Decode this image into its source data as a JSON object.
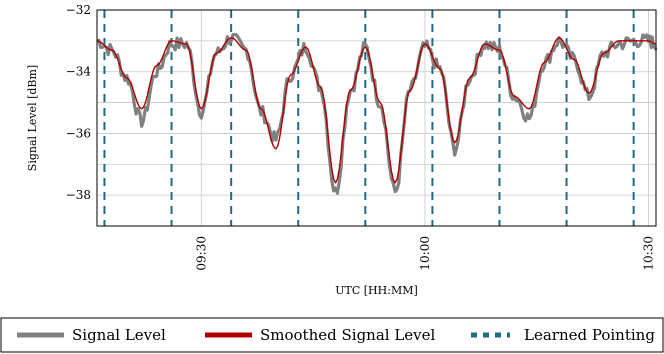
{
  "chart_data": {
    "type": "line",
    "title": "",
    "xlabel": "UTC [HH:MM]",
    "ylabel": "Signal Level [dBm]",
    "ylim": [
      -39,
      -32
    ],
    "y_ticks": [
      -32,
      -34,
      -36,
      -38
    ],
    "y_tick_labels": [
      "−32",
      "−34",
      "−36",
      "−38"
    ],
    "xlim": [
      "09:16",
      "10:31"
    ],
    "x_ticks": [
      "09:30",
      "10:00",
      "10:30"
    ],
    "grid": true,
    "legend_position": "bottom",
    "series": [
      {
        "name": "Signal Level",
        "color": "#808080",
        "style": "noisy band",
        "x": [
          "09:16",
          "09:18",
          "09:20",
          "09:22",
          "09:24",
          "09:26",
          "09:28",
          "09:30",
          "09:32",
          "09:34",
          "09:36",
          "09:38",
          "09:40",
          "09:42",
          "09:44",
          "09:46",
          "09:48",
          "09:50",
          "09:52",
          "09:54",
          "09:56",
          "09:58",
          "10:00",
          "10:02",
          "10:04",
          "10:06",
          "10:08",
          "10:10",
          "10:12",
          "10:14",
          "10:16",
          "10:18",
          "10:20",
          "10:22",
          "10:24",
          "10:26",
          "10:28",
          "10:30",
          "10:31"
        ],
        "y": [
          -33.0,
          -33.3,
          -34.2,
          -35.6,
          -34.0,
          -33.1,
          -33.1,
          -35.3,
          -33.4,
          -32.9,
          -33.3,
          -35.3,
          -36.2,
          -34.1,
          -33.2,
          -34.5,
          -37.9,
          -34.6,
          -33.2,
          -35.0,
          -37.9,
          -34.6,
          -33.2,
          -33.9,
          -36.5,
          -34.2,
          -33.1,
          -33.3,
          -34.8,
          -35.5,
          -33.7,
          -33.0,
          -33.6,
          -34.8,
          -33.4,
          -33.1,
          -33.0,
          -33.0,
          -33.1
        ]
      },
      {
        "name": "Smoothed Signal Level",
        "color": "#b00000",
        "x": [
          "09:16",
          "09:18",
          "09:20",
          "09:22",
          "09:24",
          "09:26",
          "09:28",
          "09:30",
          "09:32",
          "09:34",
          "09:36",
          "09:38",
          "09:40",
          "09:42",
          "09:44",
          "09:46",
          "09:48",
          "09:50",
          "09:52",
          "09:54",
          "09:56",
          "09:58",
          "10:00",
          "10:02",
          "10:04",
          "10:06",
          "10:08",
          "10:10",
          "10:12",
          "10:14",
          "10:16",
          "10:18",
          "10:20",
          "10:22",
          "10:24",
          "10:26",
          "10:28",
          "10:30",
          "10:31"
        ],
        "y": [
          -33.0,
          -33.3,
          -34.2,
          -35.2,
          -33.8,
          -33.0,
          -33.1,
          -35.2,
          -33.4,
          -32.9,
          -33.3,
          -35.2,
          -36.5,
          -34.1,
          -33.2,
          -34.5,
          -37.6,
          -34.6,
          -33.2,
          -35.0,
          -37.6,
          -34.6,
          -33.1,
          -33.9,
          -36.3,
          -34.2,
          -33.1,
          -33.3,
          -34.8,
          -35.2,
          -33.7,
          -32.9,
          -33.6,
          -34.7,
          -33.4,
          -33.0,
          -33.0,
          -33.0,
          -33.1
        ]
      },
      {
        "name": "Learned Pointing",
        "color": "#1f6b86",
        "style": "vertical dashed lines",
        "x": [
          "09:17",
          "09:26",
          "09:34",
          "09:43",
          "09:52",
          "10:01",
          "10:10",
          "10:19",
          "10:28"
        ]
      }
    ]
  }
}
